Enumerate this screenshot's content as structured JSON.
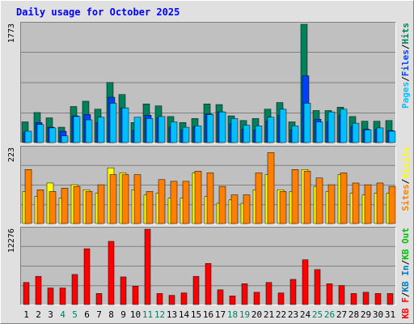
{
  "chart_data": {
    "type": "bar",
    "title": "Daily usage for October 2025",
    "colors": {
      "background": "#e0e0e0",
      "panel": "#c0c0c0",
      "hits": "#00805c",
      "files": "#0040ff",
      "pages": "#00c0ff",
      "visits": "#ffff00",
      "sites": "#ff8000",
      "kbin": "#0080c0",
      "kbout": "#00c000",
      "kbf": "#ff0000",
      "title": "#0000ff",
      "weekend": "#00805c"
    },
    "x": [
      "1",
      "2",
      "3",
      "4",
      "5",
      "6",
      "7",
      "8",
      "9",
      "10",
      "11",
      "12",
      "13",
      "14",
      "15",
      "16",
      "17",
      "18",
      "19",
      "20",
      "21",
      "22",
      "23",
      "24",
      "25",
      "26",
      "27",
      "28",
      "29",
      "30",
      "31"
    ],
    "weekend_days": [
      "4",
      "5",
      "11",
      "12",
      "18",
      "19",
      "25",
      "26"
    ],
    "panels": [
      {
        "max_label": "1773",
        "ymax": 1773,
        "series": [
          {
            "name": "Hits",
            "values": [
              310,
              450,
              370,
              230,
              540,
              620,
              500,
              900,
              720,
              300,
              580,
              550,
              390,
              300,
              360,
              580,
              570,
              400,
              330,
              360,
              500,
              600,
              310,
              1773,
              480,
              480,
              530,
              390,
              320,
              320,
              330
            ]
          },
          {
            "name": "Files",
            "values": [
              150,
              300,
              230,
              170,
              400,
              420,
              300,
              680,
              520,
              180,
              410,
              370,
              230,
              190,
              240,
              430,
              460,
              280,
              200,
              190,
              320,
              410,
              190,
              1000,
              350,
              310,
              410,
              240,
              200,
              200,
              180
            ]
          },
          {
            "name": "Pages",
            "values": [
              170,
              270,
              220,
              100,
              390,
              340,
              380,
              590,
              520,
              380,
              360,
              390,
              310,
              230,
              250,
              420,
              460,
              360,
              260,
              250,
              380,
              500,
              250,
              590,
              310,
              460,
              500,
              290,
              190,
              220,
              170
            ]
          }
        ]
      },
      {
        "max_label": "223",
        "ymax": 223,
        "series": [
          {
            "name": "Visits",
            "values": [
              95,
              80,
              120,
              75,
              115,
              100,
              90,
              165,
              150,
              100,
              85,
              90,
              75,
              75,
              150,
              80,
              60,
              70,
              60,
              100,
              145,
              100,
              95,
              160,
              110,
              95,
              145,
              90,
              85,
              90,
              90
            ]
          },
          {
            "name": "Sites",
            "values": [
              160,
              100,
              95,
              105,
              110,
              95,
              115,
              145,
              145,
              145,
              95,
              130,
              125,
              125,
              155,
              150,
              110,
              85,
              85,
              150,
              210,
              95,
              160,
              155,
              135,
              115,
              150,
              120,
              115,
              120,
              110
            ]
          }
        ]
      },
      {
        "max_label": "12276",
        "ymax": 12276,
        "series": [
          {
            "name": "KB F",
            "values": [
              3600,
              4600,
              2700,
              2700,
              4900,
              9100,
              1800,
              10300,
              4500,
              3000,
              12276,
              1800,
              1500,
              1900,
              4600,
              6700,
              2400,
              1400,
              3400,
              2000,
              3600,
              1900,
              4100,
              7300,
              5700,
              3400,
              3100,
              1800,
              2000,
              1800,
              1800
            ]
          }
        ]
      }
    ],
    "legends": [
      {
        "items": [
          {
            "text": "Pages",
            "color": "#00c0ff"
          },
          {
            "text": "Files",
            "color": "#0040ff"
          },
          {
            "text": "Hits",
            "color": "#00805c"
          }
        ]
      },
      {
        "items": [
          {
            "text": "Sites",
            "color": "#ff8000"
          },
          {
            "text": "Visits",
            "color": "#ffff00"
          }
        ]
      },
      {
        "items": [
          {
            "text": "KB F",
            "color": "#ff0000"
          },
          {
            "text": "KB In",
            "color": "#0080c0"
          },
          {
            "text": "KB Out",
            "color": "#00c000"
          }
        ]
      }
    ],
    "legend_separator": "/",
    "ylabel": "",
    "xlabel": ""
  }
}
